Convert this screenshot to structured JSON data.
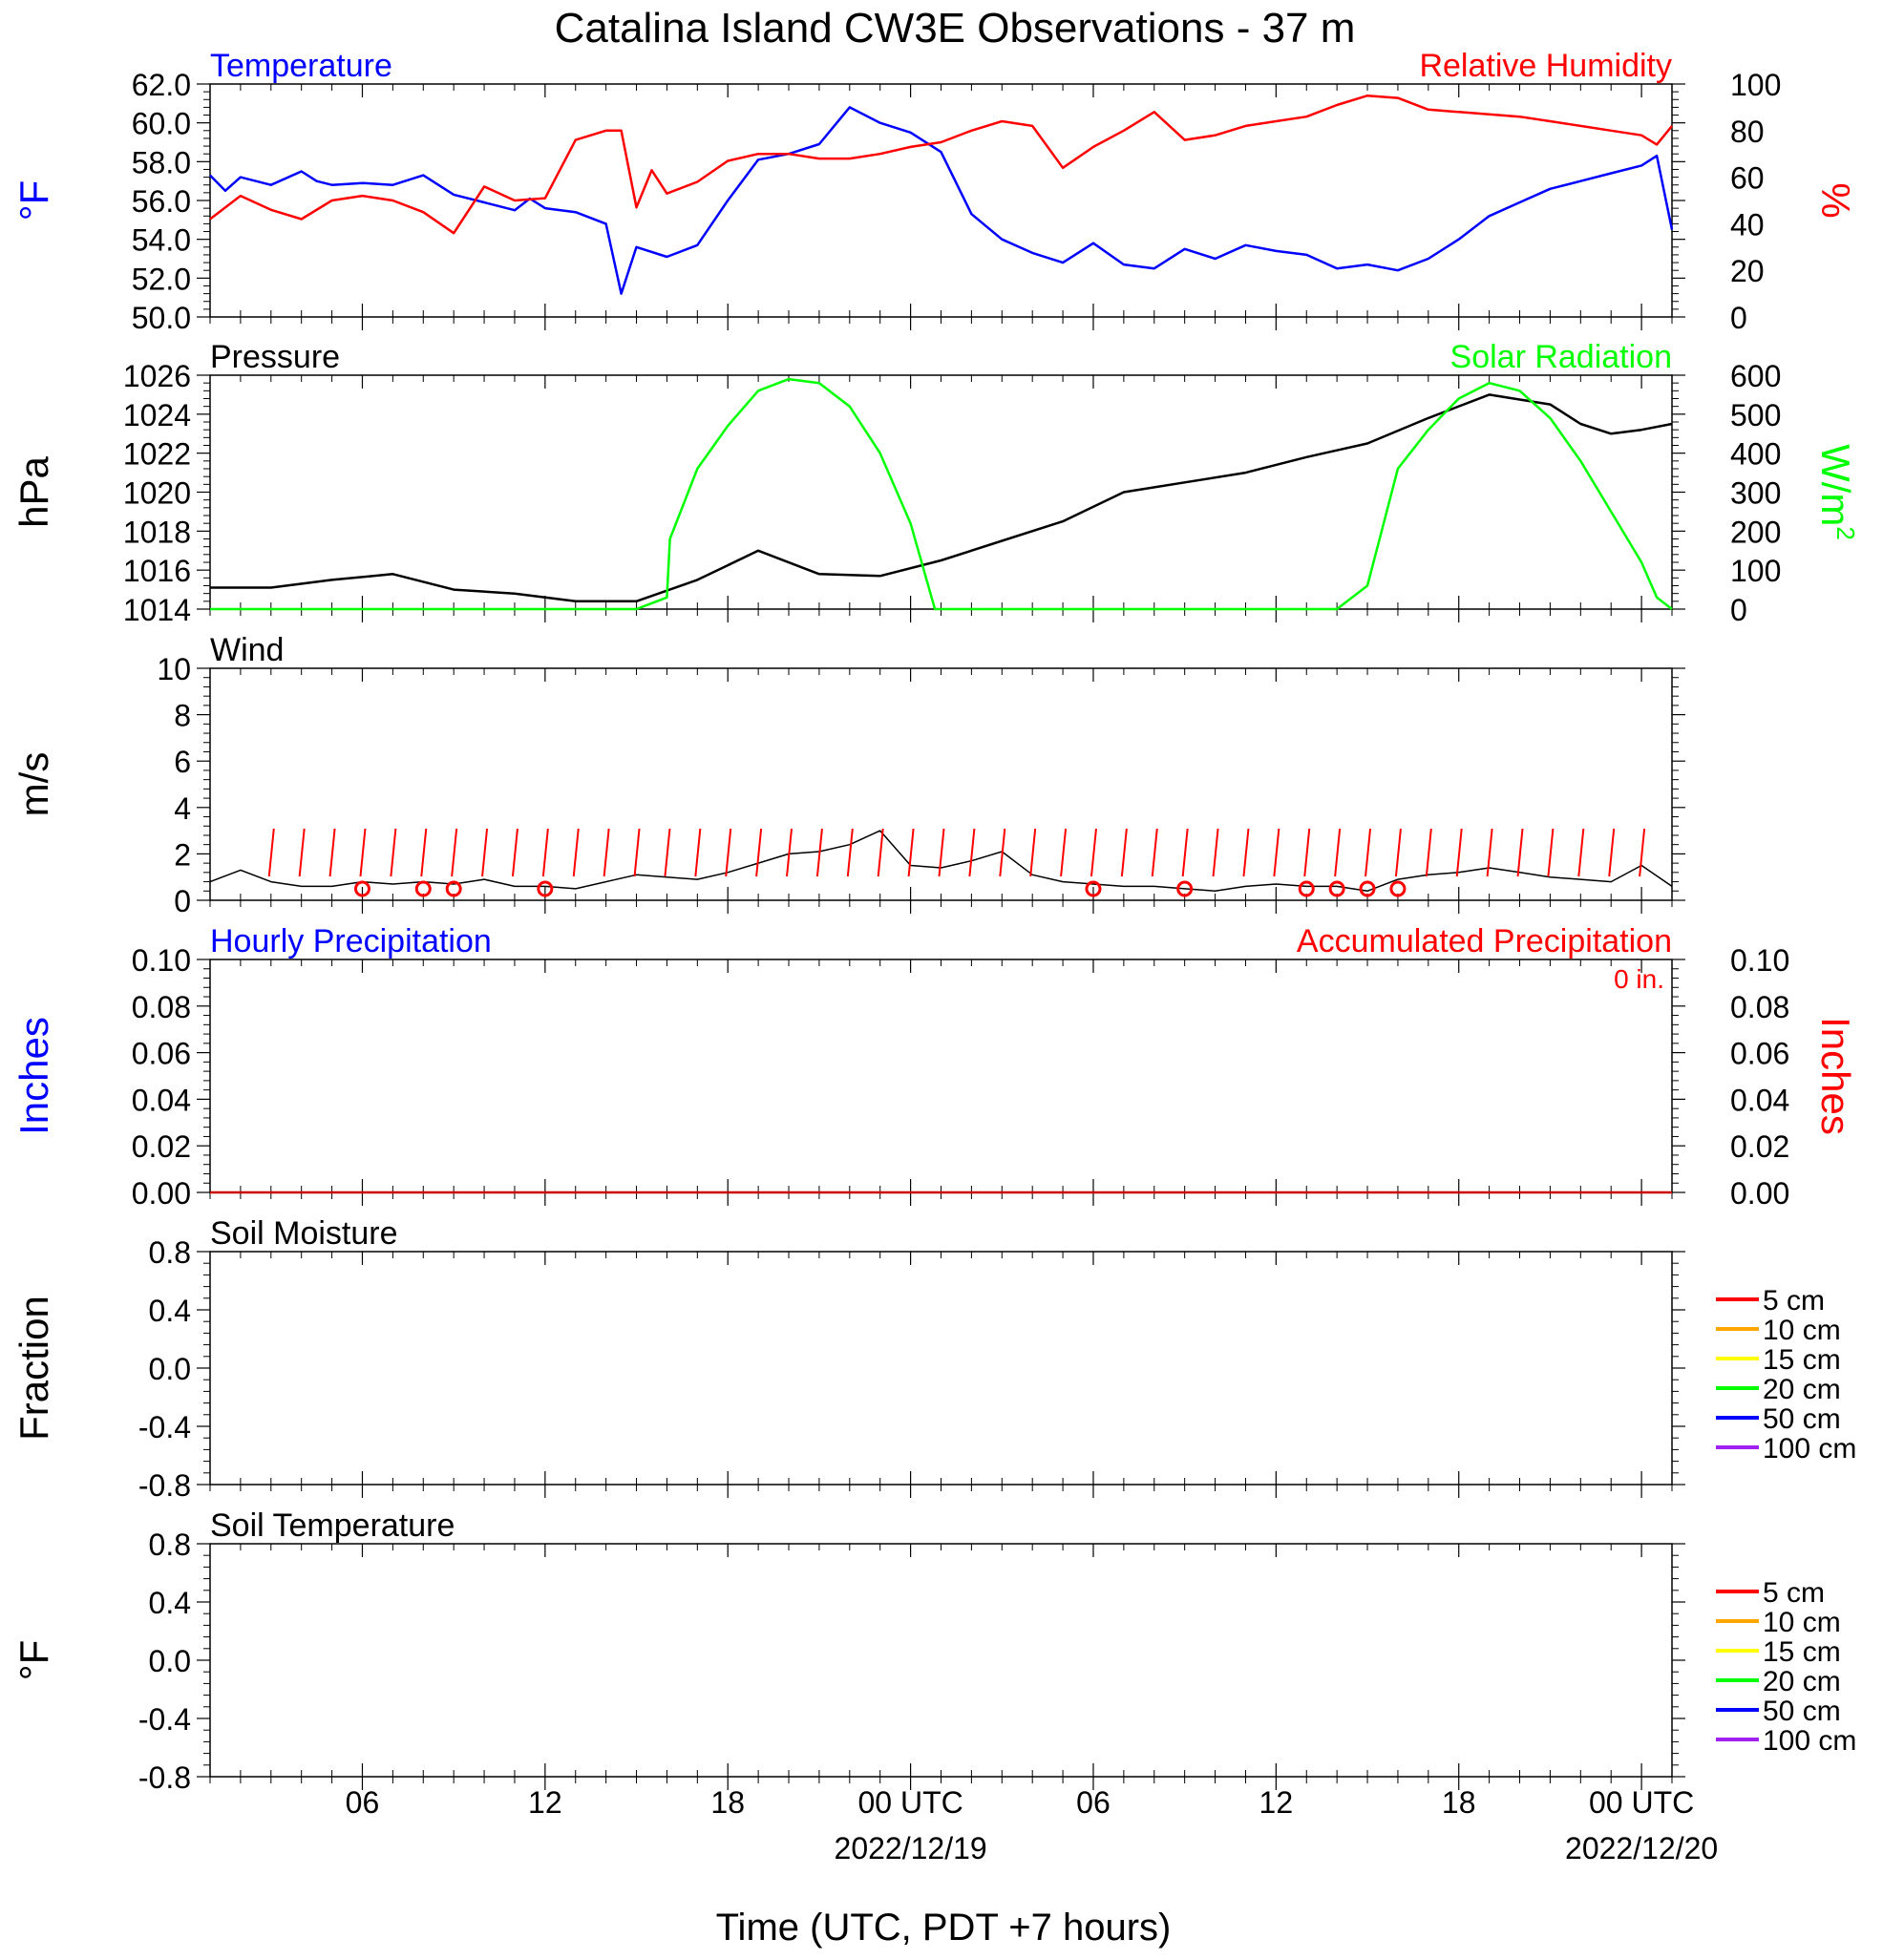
{
  "title": "Catalina Island CW3E Observations - 37 m",
  "xaxis": {
    "title": "Time (UTC, PDT +7 hours)",
    "tick_labels": [
      "06",
      "12",
      "18",
      "00 UTC",
      "06",
      "12",
      "18",
      "00 UTC"
    ],
    "date_labels": [
      {
        "at": "2022-12-19 00:00",
        "label": "2022/12/19"
      },
      {
        "at": "2022-12-20 00:00",
        "label": "2022/12/20"
      }
    ]
  },
  "chart_data": [
    {
      "type": "line",
      "panel": "temperature_humidity",
      "x_range": [
        "2022-12-18 01:00",
        "2022-12-20 01:00"
      ],
      "left_title": "Temperature",
      "right_title": "Relative Humidity",
      "left_ylabel": "°F",
      "right_ylabel": "%",
      "left_ylim": [
        50,
        62
      ],
      "right_ylim": [
        0,
        100
      ],
      "left_ticks": [
        "62.0",
        "60.0",
        "58.0",
        "56.0",
        "54.0",
        "52.0",
        "50.0"
      ],
      "right_ticks": [
        "100",
        "80",
        "60",
        "40",
        "20",
        "0"
      ],
      "series": [
        {
          "name": "Temperature",
          "axis": "left",
          "color": "#0000ff",
          "x_hours": [
            0,
            0.5,
            1,
            2,
            3,
            3.5,
            4,
            5,
            6,
            7,
            8,
            9,
            10,
            10.5,
            11,
            12,
            13,
            13.5,
            14,
            15,
            16,
            17,
            18,
            19,
            20,
            21,
            22,
            23,
            24,
            25,
            26,
            27,
            28,
            29,
            30,
            31,
            32,
            33,
            34,
            35,
            36,
            37,
            38,
            39,
            40,
            41,
            42,
            43,
            44,
            45,
            46,
            47,
            47.5,
            48
          ],
          "values": [
            57.3,
            56.5,
            57.2,
            56.8,
            57.5,
            57.0,
            56.8,
            56.9,
            56.8,
            57.3,
            56.3,
            55.9,
            55.5,
            56.1,
            55.6,
            55.4,
            54.8,
            51.2,
            53.6,
            53.1,
            53.7,
            56.0,
            58.1,
            58.4,
            58.9,
            60.8,
            60.0,
            59.5,
            58.5,
            55.3,
            54.0,
            53.3,
            52.8,
            53.8,
            52.7,
            52.5,
            53.5,
            53.0,
            53.7,
            53.4,
            53.2,
            52.5,
            52.7,
            52.4,
            53.0,
            54.0,
            55.2,
            55.9,
            56.6,
            57.0,
            57.4,
            57.8,
            58.3,
            54.5
          ]
        },
        {
          "name": "Relative Humidity",
          "axis": "right",
          "color": "#ff0000",
          "x_hours": [
            0,
            1,
            2,
            3,
            4,
            5,
            6,
            7,
            8,
            9,
            10,
            11,
            12,
            13,
            13.5,
            14,
            14.5,
            15,
            16,
            17,
            18,
            19,
            20,
            21,
            22,
            23,
            24,
            25,
            26,
            27,
            28,
            29,
            30,
            31,
            32,
            33,
            34,
            35,
            36,
            37,
            38,
            39,
            40,
            41,
            42,
            43,
            44,
            45,
            46,
            47,
            47.5,
            48
          ],
          "values": [
            42,
            52,
            46,
            42,
            50,
            52,
            50,
            45,
            36,
            56,
            50,
            51,
            76,
            80,
            80,
            47,
            63,
            53,
            58,
            67,
            70,
            70,
            68,
            68,
            70,
            73,
            75,
            80,
            84,
            82,
            64,
            73,
            80,
            88,
            76,
            78,
            82,
            84,
            86,
            91,
            95,
            94,
            89,
            88,
            87,
            86,
            84,
            82,
            80,
            78,
            74,
            82
          ]
        }
      ]
    },
    {
      "type": "line",
      "panel": "pressure_solar",
      "x_range": [
        "2022-12-18 01:00",
        "2022-12-20 01:00"
      ],
      "left_title": "Pressure",
      "right_title": "Solar Radiation",
      "left_ylabel": "hPa",
      "right_ylabel": "W/m",
      "right_ylabel_sup": "2",
      "left_ylim": [
        1014,
        1026
      ],
      "right_ylim": [
        0,
        600
      ],
      "left_ticks": [
        "1026",
        "1024",
        "1022",
        "1020",
        "1018",
        "1016",
        "1014"
      ],
      "right_ticks": [
        "600",
        "500",
        "400",
        "300",
        "200",
        "100",
        "0"
      ],
      "series": [
        {
          "name": "Pressure",
          "axis": "left",
          "color": "#000000",
          "x_hours": [
            0,
            2,
            4,
            6,
            8,
            10,
            12,
            14,
            16,
            18,
            20,
            22,
            24,
            26,
            28,
            30,
            32,
            34,
            36,
            38,
            40,
            42,
            44,
            45,
            46,
            47,
            48
          ],
          "values": [
            1015.1,
            1015.1,
            1015.5,
            1015.8,
            1015.0,
            1014.8,
            1014.4,
            1014.4,
            1015.5,
            1017.0,
            1015.8,
            1015.7,
            1016.5,
            1017.5,
            1018.5,
            1020.0,
            1020.5,
            1021.0,
            1021.8,
            1022.5,
            1023.8,
            1025.0,
            1024.5,
            1023.5,
            1023.0,
            1023.2,
            1023.5
          ]
        },
        {
          "name": "Solar Radiation",
          "axis": "right",
          "color": "#00ff00",
          "x_hours": [
            0,
            14,
            15,
            15.1,
            16,
            17,
            18,
            19,
            20,
            21,
            22,
            23,
            23.8,
            30,
            37,
            38,
            38.5,
            39,
            40,
            41,
            42,
            43,
            44,
            45,
            46,
            47,
            47.5,
            48
          ],
          "values": [
            0,
            0,
            30,
            180,
            360,
            470,
            560,
            590,
            580,
            520,
            400,
            220,
            0,
            0,
            0,
            60,
            210,
            360,
            460,
            540,
            580,
            560,
            490,
            380,
            250,
            120,
            30,
            0
          ]
        }
      ]
    },
    {
      "type": "line",
      "panel": "wind",
      "x_range": [
        "2022-12-18 01:00",
        "2022-12-20 01:00"
      ],
      "left_title": "Wind",
      "left_ylabel": "m/s",
      "left_ylim": [
        0,
        10
      ],
      "left_ticks": [
        "10",
        "8",
        "6",
        "4",
        "2",
        "0"
      ],
      "series": [
        {
          "name": "Wind speed",
          "axis": "left",
          "color": "#000000",
          "x_hours": [
            0,
            1,
            2,
            3,
            4,
            5,
            6,
            7,
            8,
            9,
            10,
            11,
            12,
            13,
            14,
            15,
            16,
            17,
            18,
            19,
            20,
            21,
            22,
            23,
            24,
            25,
            26,
            27,
            28,
            29,
            30,
            31,
            32,
            33,
            34,
            35,
            36,
            37,
            38,
            39,
            40,
            41,
            42,
            43,
            44,
            45,
            46,
            47,
            48
          ],
          "values": [
            0.8,
            1.3,
            0.8,
            0.6,
            0.6,
            0.8,
            0.7,
            0.8,
            0.7,
            0.9,
            0.6,
            0.6,
            0.5,
            0.8,
            1.1,
            1.0,
            0.9,
            1.2,
            1.6,
            2.0,
            2.1,
            2.4,
            3.0,
            1.5,
            1.4,
            1.7,
            2.1,
            1.1,
            0.8,
            0.7,
            0.6,
            0.6,
            0.5,
            0.4,
            0.6,
            0.7,
            0.6,
            0.6,
            0.4,
            0.9,
            1.1,
            1.2,
            1.4,
            1.2,
            1.0,
            0.9,
            0.8,
            1.5,
            0.6
          ]
        }
      ],
      "barb_hours": [
        2,
        3,
        4,
        5,
        6,
        7,
        8,
        9,
        10,
        11,
        12,
        13,
        14,
        15,
        16,
        17,
        18,
        19,
        20,
        21,
        22,
        23,
        24,
        25,
        26,
        27,
        28,
        29,
        30,
        31,
        32,
        33,
        34,
        35,
        36,
        37,
        38,
        39,
        40,
        41,
        42,
        43,
        44,
        45,
        46,
        47
      ],
      "calm_hours": [
        5,
        7,
        8,
        11,
        29,
        32,
        36,
        37,
        38,
        39
      ]
    },
    {
      "type": "line",
      "panel": "precipitation",
      "x_range": [
        "2022-12-18 01:00",
        "2022-12-20 01:00"
      ],
      "left_title": "Hourly Precipitation",
      "right_title": "Accumulated Precipitation",
      "total_label": "0 in.",
      "left_ylabel": "Inches",
      "right_ylabel": "Inches",
      "left_ylim": [
        0,
        0.1
      ],
      "right_ylim": [
        0,
        0.1
      ],
      "left_ticks": [
        "0.10",
        "0.08",
        "0.06",
        "0.04",
        "0.02",
        "0.00"
      ],
      "right_ticks": [
        "0.10",
        "0.08",
        "0.06",
        "0.04",
        "0.02",
        "0.00"
      ],
      "series": [
        {
          "name": "Accumulated Precipitation",
          "axis": "right",
          "color": "#cc0000",
          "x_hours": [
            0,
            48
          ],
          "values": [
            0,
            0
          ]
        }
      ]
    },
    {
      "type": "line",
      "panel": "soil_moisture",
      "left_title": "Soil Moisture",
      "left_ylabel": "Fraction",
      "left_ylim": [
        -1,
        1
      ],
      "left_ticks": [
        "0.8",
        "0.4",
        "0.0",
        "-0.4",
        "-0.8"
      ],
      "legend": [
        {
          "label": "5 cm",
          "color": "#ff0000"
        },
        {
          "label": "10 cm",
          "color": "#ffa500"
        },
        {
          "label": "15 cm",
          "color": "#ffff00"
        },
        {
          "label": "20 cm",
          "color": "#00ff00"
        },
        {
          "label": "50 cm",
          "color": "#0000ff"
        },
        {
          "label": "100 cm",
          "color": "#a020f0"
        }
      ],
      "series": []
    },
    {
      "type": "line",
      "panel": "soil_temperature",
      "left_title": "Soil Temperature",
      "left_ylabel": "°F",
      "left_ylim": [
        -1,
        1
      ],
      "left_ticks": [
        "0.8",
        "0.4",
        "0.0",
        "-0.4",
        "-0.8"
      ],
      "legend": [
        {
          "label": "5 cm",
          "color": "#ff0000"
        },
        {
          "label": "10 cm",
          "color": "#ffa500"
        },
        {
          "label": "15 cm",
          "color": "#ffff00"
        },
        {
          "label": "20 cm",
          "color": "#00ff00"
        },
        {
          "label": "50 cm",
          "color": "#0000ff"
        },
        {
          "label": "100 cm",
          "color": "#a020f0"
        }
      ],
      "series": []
    }
  ]
}
